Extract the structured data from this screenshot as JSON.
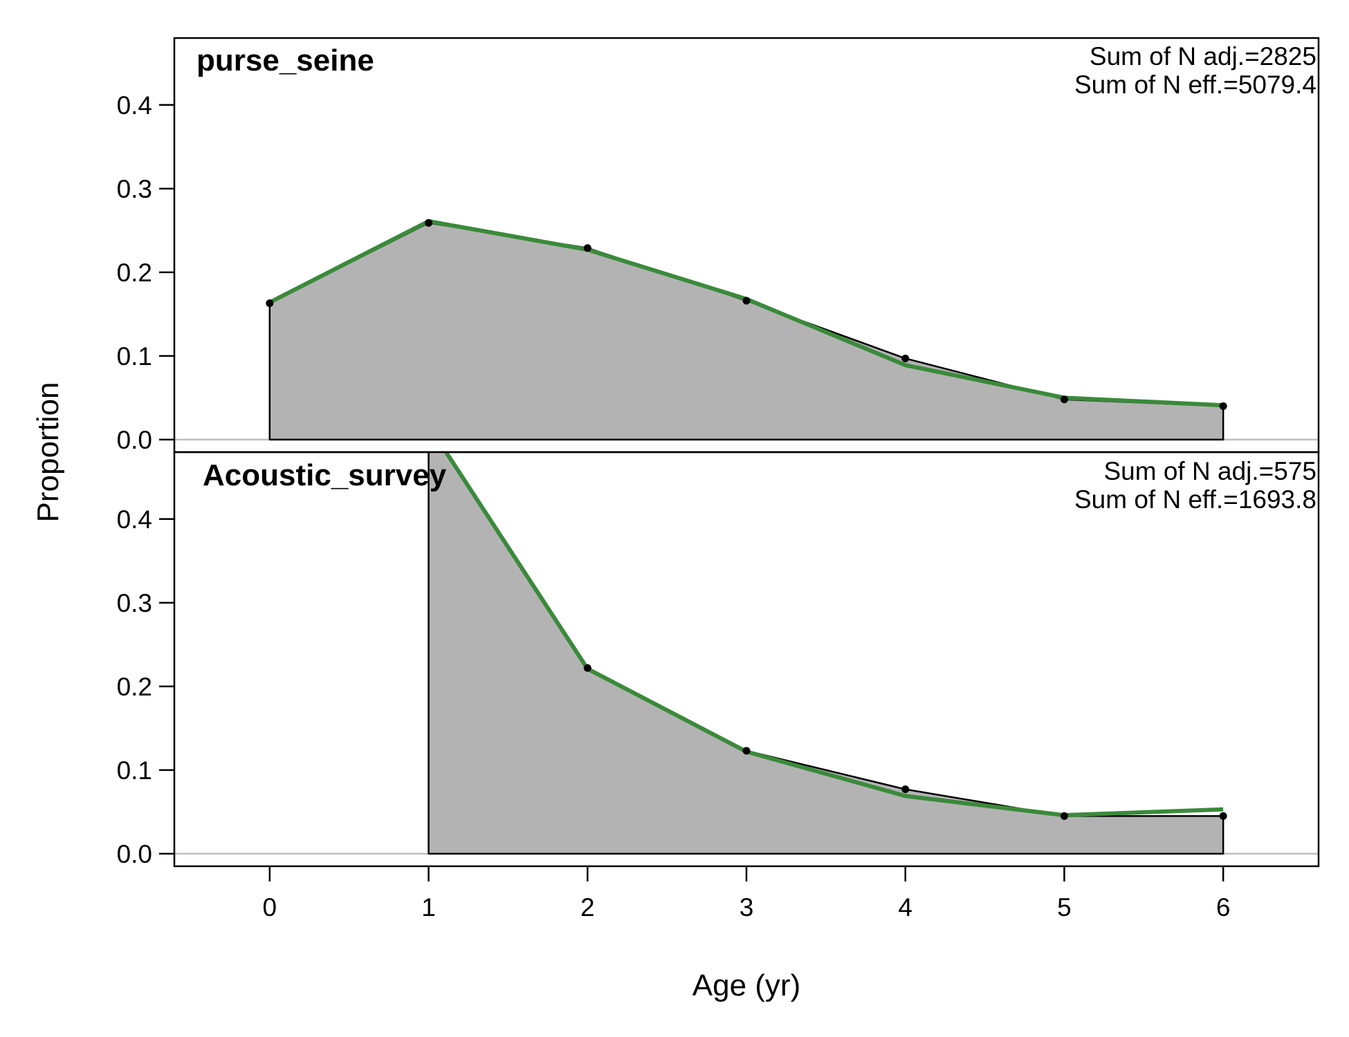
{
  "chart_data": {
    "type": "area",
    "xlabel": "Age (yr)",
    "ylabel": "Proportion",
    "x_ticks": [
      0,
      1,
      2,
      3,
      4,
      5,
      6
    ],
    "xlim": [
      -0.6,
      6.6
    ],
    "panels": [
      {
        "name": "purse_seine",
        "note_lines": [
          "Sum of N adj.=2825",
          "Sum of N eff.=5079.4"
        ],
        "ylim": [
          -0.015,
          0.48
        ],
        "y_ticks": [
          "0.0",
          "0.1",
          "0.2",
          "0.3",
          "0.4"
        ],
        "observed": {
          "x": [
            0,
            1,
            2,
            3,
            4,
            5,
            6
          ],
          "y": [
            0.163,
            0.259,
            0.229,
            0.166,
            0.097,
            0.048,
            0.04
          ]
        },
        "expected": {
          "x": [
            0,
            1,
            2,
            3,
            4,
            5,
            6
          ],
          "y": [
            0.164,
            0.261,
            0.227,
            0.168,
            0.089,
            0.05,
            0.041
          ]
        }
      },
      {
        "name": "Acoustic_survey",
        "note_lines": [
          "Sum of N adj.=575",
          "Sum of N eff.=1693.8"
        ],
        "ylim": [
          -0.015,
          0.48
        ],
        "y_ticks": [
          "0.0",
          "0.1",
          "0.2",
          "0.3",
          "0.4"
        ],
        "observed": {
          "x": [
            1,
            2,
            3,
            4,
            5,
            6
          ],
          "y": [
            0.51,
            0.222,
            0.123,
            0.077,
            0.045,
            0.045
          ]
        },
        "expected": {
          "x": [
            1,
            2,
            3,
            4,
            5,
            6
          ],
          "y": [
            0.512,
            0.221,
            0.122,
            0.069,
            0.046,
            0.053
          ]
        }
      }
    ],
    "colors": {
      "fill": "#b3b3b3",
      "observed_line": "#000000",
      "expected_line": "#3a8a3a",
      "zero_line": "#bebebe"
    },
    "grid": false,
    "legend": "none"
  }
}
